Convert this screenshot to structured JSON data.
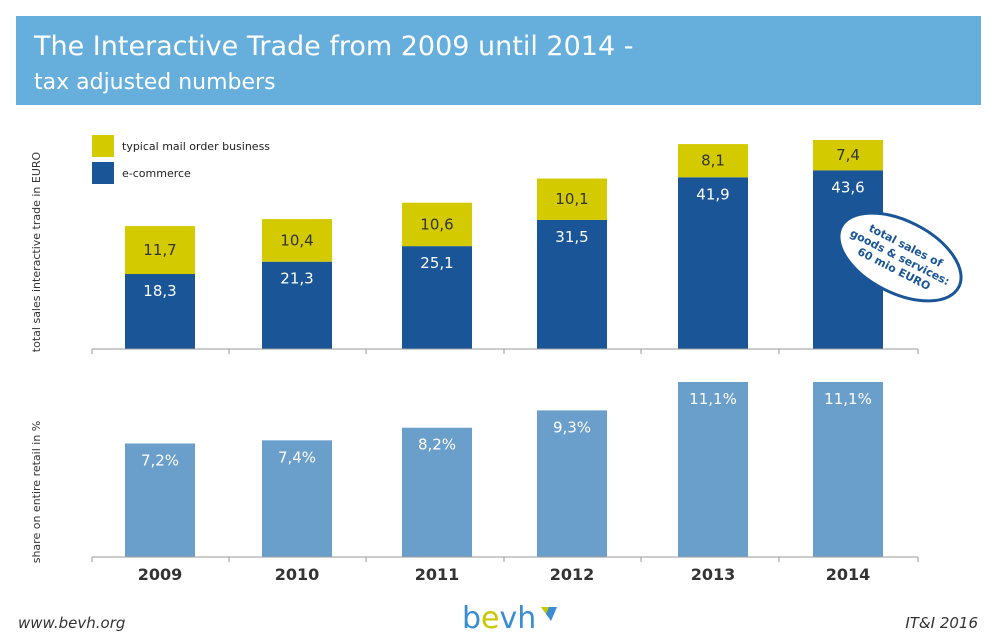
{
  "header": {
    "title_line1": "The Interactive Trade from 2009 until 2014 -",
    "title_line2": "tax adjusted numbers"
  },
  "footer": {
    "website": "www.bevh.org",
    "logo": "bevh",
    "edition": "IT&I 2016"
  },
  "colors": {
    "header_bg": "#66aedc",
    "ecommerce": "#1a5598",
    "mail_order": "#d4ca00",
    "share": "#6a9fcc",
    "axis": "#9a9a9a"
  },
  "chart_data": [
    {
      "type": "bar",
      "stacked": true,
      "categories": [
        "2009",
        "2010",
        "2011",
        "2012",
        "2013",
        "2014"
      ],
      "ylabel": "total sales interactive trade in EURO",
      "series": [
        {
          "name": "e-commerce",
          "values": [
            18.3,
            21.3,
            25.1,
            31.5,
            41.9,
            43.6
          ],
          "labels": [
            "18,3",
            "21,3",
            "25,1",
            "31,5",
            "41,9",
            "43,6"
          ]
        },
        {
          "name": "typical mail order business",
          "values": [
            11.7,
            10.4,
            10.6,
            10.1,
            8.1,
            7.4
          ],
          "labels": [
            "11,7",
            "10,4",
            "10,6",
            "10,1",
            "8,1",
            "7,4"
          ]
        }
      ],
      "legend_position": "top-left",
      "annotation": {
        "lines": [
          "total sales of",
          "goods & services:",
          "60 mio EURO"
        ]
      },
      "ylim": [
        0,
        51
      ]
    },
    {
      "type": "bar",
      "categories": [
        "2009",
        "2010",
        "2011",
        "2012",
        "2013",
        "2014"
      ],
      "ylabel": "share on entire retail in %",
      "values": [
        7.2,
        7.4,
        8.2,
        9.3,
        11.1,
        11.1
      ],
      "labels": [
        "7,2%",
        "7,4%",
        "8,2%",
        "9,3%",
        "11,1%",
        "11,1%"
      ],
      "ylim": [
        0,
        11.1
      ]
    }
  ]
}
